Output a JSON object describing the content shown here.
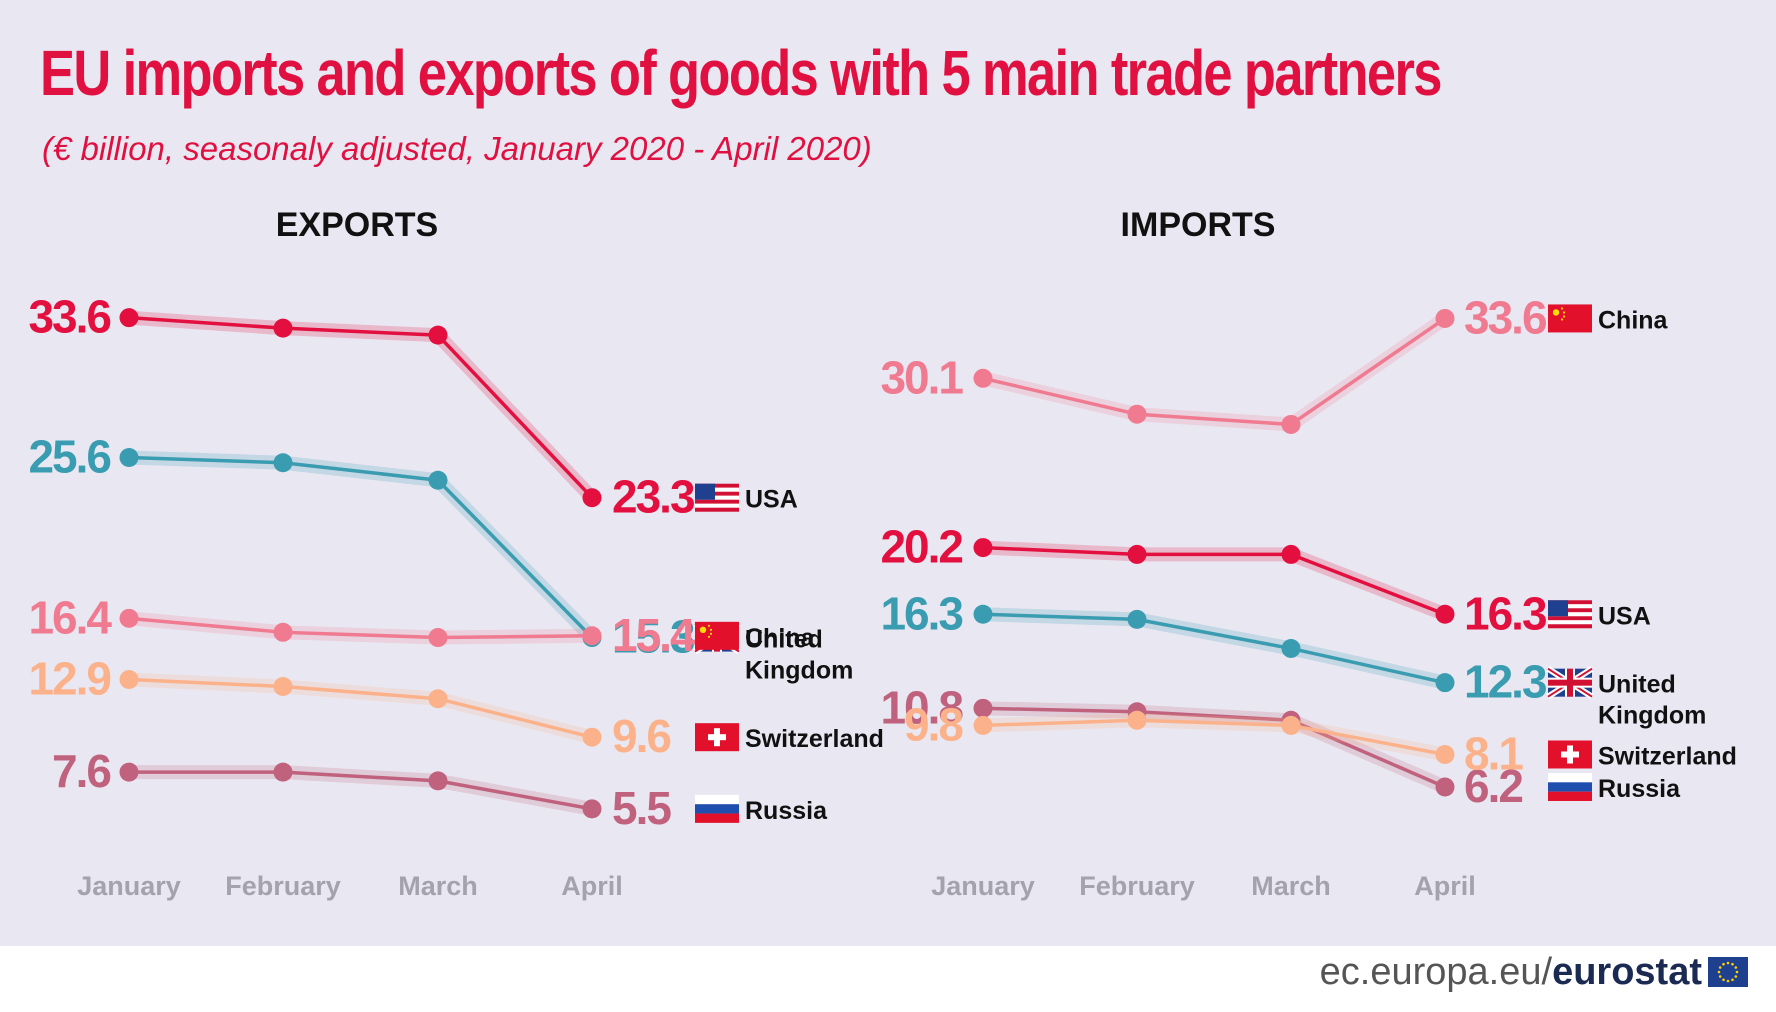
{
  "title": "EU imports and exports of goods with 5 main trade partners",
  "subtitle": "(€ billion, seasonaly adjusted, January 2020 - April 2020)",
  "footer": {
    "site": "ec.europa.eu/",
    "brand": "eurostat"
  },
  "colors": {
    "USA": "#e3103f",
    "China": "#f07a90",
    "United Kingdom": "#3a9cb0",
    "Switzerland": "#fbb28b",
    "Russia": "#c0627d"
  },
  "chart_data": [
    {
      "type": "line",
      "title": "EXPORTS",
      "categories": [
        "January",
        "February",
        "March",
        "April"
      ],
      "series": [
        {
          "name": "USA",
          "values": [
            33.6,
            33.0,
            32.6,
            23.3
          ],
          "start_label": "33.6",
          "end_label": "23.3",
          "flag": "usa"
        },
        {
          "name": "United Kingdom",
          "values": [
            25.6,
            25.3,
            24.3,
            15.3
          ],
          "start_label": "25.6",
          "end_label": "15.3",
          "flag": "uk"
        },
        {
          "name": "China",
          "values": [
            16.4,
            15.6,
            15.3,
            15.4
          ],
          "start_label": "16.4",
          "end_label": "15.4",
          "flag": "china"
        },
        {
          "name": "Switzerland",
          "values": [
            12.9,
            12.5,
            11.8,
            9.6
          ],
          "start_label": "12.9",
          "end_label": "9.6",
          "flag": "switzerland"
        },
        {
          "name": "Russia",
          "values": [
            7.6,
            7.6,
            7.1,
            5.5
          ],
          "start_label": "7.6",
          "end_label": "5.5",
          "flag": "russia"
        }
      ]
    },
    {
      "type": "line",
      "title": "IMPORTS",
      "categories": [
        "January",
        "February",
        "March",
        "April"
      ],
      "series": [
        {
          "name": "China",
          "values": [
            30.1,
            28.0,
            27.4,
            33.6
          ],
          "start_label": "30.1",
          "end_label": "33.6",
          "flag": "china"
        },
        {
          "name": "USA",
          "values": [
            20.2,
            19.8,
            19.8,
            16.3
          ],
          "start_label": "20.2",
          "end_label": "16.3",
          "flag": "usa"
        },
        {
          "name": "United Kingdom",
          "values": [
            16.3,
            16.0,
            14.3,
            12.3
          ],
          "start_label": "16.3",
          "end_label": "12.3",
          "flag": "uk"
        },
        {
          "name": "Russia",
          "values": [
            10.8,
            10.6,
            10.1,
            6.2
          ],
          "start_label": "10.8",
          "end_label": "6.2",
          "flag": "russia"
        },
        {
          "name": "Switzerland",
          "values": [
            9.8,
            10.1,
            9.8,
            8.1
          ],
          "start_label": "9.8",
          "end_label": "8.1",
          "flag": "switzerland"
        }
      ]
    }
  ]
}
